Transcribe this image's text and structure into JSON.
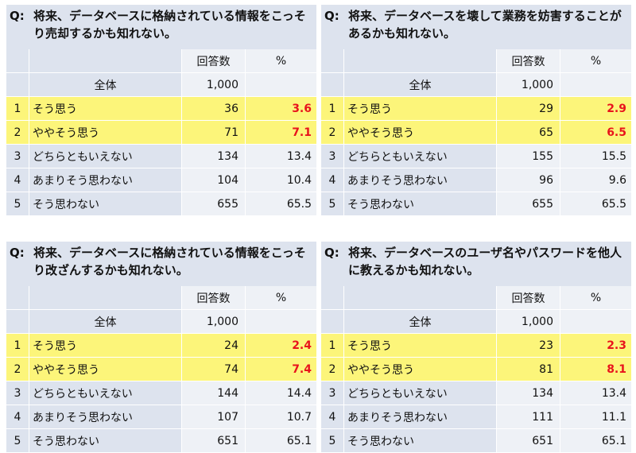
{
  "chart_data": [
    {
      "type": "table",
      "q_label": "Q:",
      "title": "将来、データベースに格納されている情報をこっそり売却するかも知れない。",
      "header": {
        "count": "回答数",
        "pct": "%"
      },
      "total": {
        "label": "全体",
        "count": "1,000"
      },
      "rows": [
        {
          "no": "1",
          "label": "そう思う",
          "count": 36,
          "pct": "3.6"
        },
        {
          "no": "2",
          "label": "ややそう思う",
          "count": 71,
          "pct": "7.1"
        },
        {
          "no": "3",
          "label": "どちらともいえない",
          "count": 134,
          "pct": "13.4"
        },
        {
          "no": "4",
          "label": "あまりそう思わない",
          "count": 104,
          "pct": "10.4"
        },
        {
          "no": "5",
          "label": "そう思わない",
          "count": 655,
          "pct": "65.5"
        }
      ]
    },
    {
      "type": "table",
      "q_label": "Q:",
      "title": "将来、データベースを壊して業務を妨害することがあるかも知れない。",
      "header": {
        "count": "回答数",
        "pct": "%"
      },
      "total": {
        "label": "全体",
        "count": "1,000"
      },
      "rows": [
        {
          "no": "1",
          "label": "そう思う",
          "count": 29,
          "pct": "2.9"
        },
        {
          "no": "2",
          "label": "ややそう思う",
          "count": 65,
          "pct": "6.5"
        },
        {
          "no": "3",
          "label": "どちらともいえない",
          "count": 155,
          "pct": "15.5"
        },
        {
          "no": "4",
          "label": "あまりそう思わない",
          "count": 96,
          "pct": "9.6"
        },
        {
          "no": "5",
          "label": "そう思わない",
          "count": 655,
          "pct": "65.5"
        }
      ]
    },
    {
      "type": "table",
      "q_label": "Q:",
      "title": "将来、データベースに格納されている情報をこっそり改ざんするかも知れない。",
      "header": {
        "count": "回答数",
        "pct": "%"
      },
      "total": {
        "label": "全体",
        "count": "1,000"
      },
      "rows": [
        {
          "no": "1",
          "label": "そう思う",
          "count": 24,
          "pct": "2.4"
        },
        {
          "no": "2",
          "label": "ややそう思う",
          "count": 74,
          "pct": "7.4"
        },
        {
          "no": "3",
          "label": "どちらともいえない",
          "count": 144,
          "pct": "14.4"
        },
        {
          "no": "4",
          "label": "あまりそう思わない",
          "count": 107,
          "pct": "10.7"
        },
        {
          "no": "5",
          "label": "そう思わない",
          "count": 651,
          "pct": "65.1"
        }
      ]
    },
    {
      "type": "table",
      "q_label": "Q:",
      "title": "将来、データベースのユーザ名やパスワードを他人に教えるかも知れない。",
      "header": {
        "count": "回答数",
        "pct": "%"
      },
      "total": {
        "label": "全体",
        "count": "1,000"
      },
      "rows": [
        {
          "no": "1",
          "label": "そう思う",
          "count": 23,
          "pct": "2.3"
        },
        {
          "no": "2",
          "label": "ややそう思う",
          "count": 81,
          "pct": "8.1"
        },
        {
          "no": "3",
          "label": "どちらともいえない",
          "count": 134,
          "pct": "13.4"
        },
        {
          "no": "4",
          "label": "あまりそう思わない",
          "count": 111,
          "pct": "11.1"
        },
        {
          "no": "5",
          "label": "そう思わない",
          "count": 651,
          "pct": "65.1"
        }
      ]
    }
  ],
  "colors": {
    "header_bg": "#dde3ee",
    "value_bg": "#eef1f6",
    "highlight_bg": "#fcf57a",
    "highlight_text": "#e8141c"
  }
}
